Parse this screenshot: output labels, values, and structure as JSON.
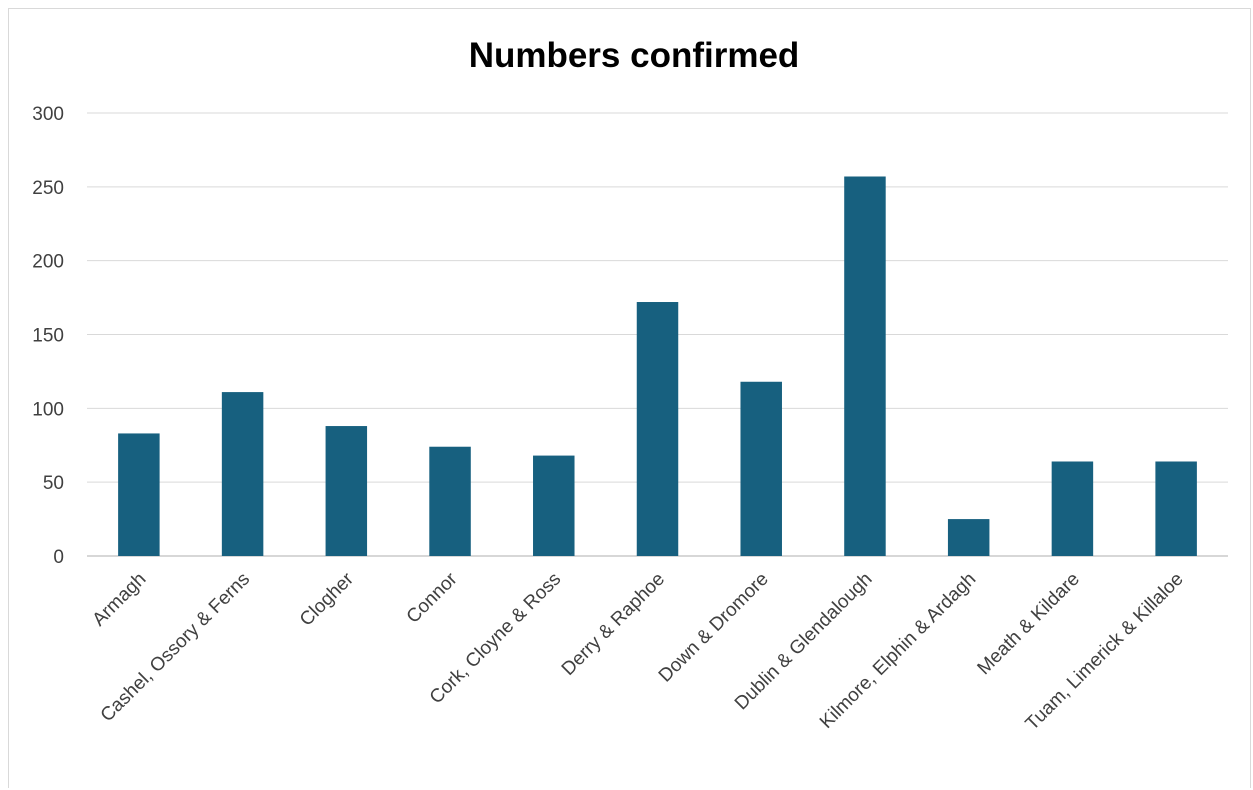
{
  "chart_data": {
    "type": "bar",
    "title": "Numbers confirmed",
    "categories": [
      "Armagh",
      "Cashel, Ossory & Ferns",
      "Clogher",
      "Connor",
      "Cork, Cloyne & Ross",
      "Derry & Raphoe",
      "Down & Dromore",
      "Dublin & Glendalough",
      "Kilmore, Elphin & Ardagh",
      "Meath & Kildare",
      "Tuam, Limerick & Killaloe"
    ],
    "values": [
      83,
      111,
      88,
      74,
      68,
      172,
      118,
      257,
      25,
      64,
      64
    ],
    "ylim": [
      0,
      300
    ],
    "yticks": [
      0,
      50,
      100,
      150,
      200,
      250,
      300
    ],
    "grid": true,
    "bar_color": "#17607f"
  }
}
